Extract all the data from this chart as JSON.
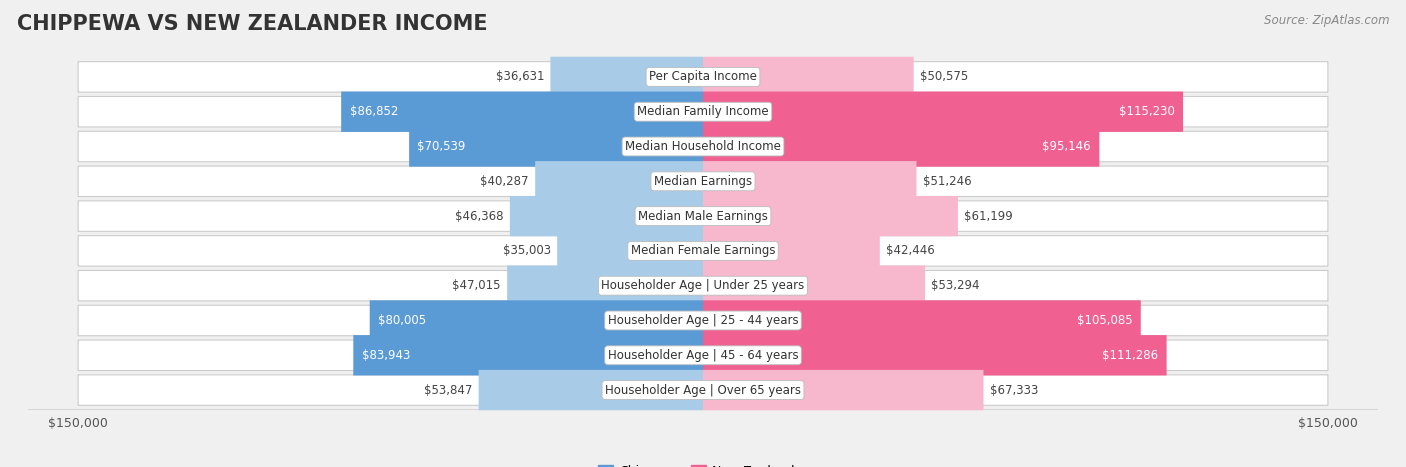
{
  "title": "CHIPPEWA VS NEW ZEALANDER INCOME",
  "source": "Source: ZipAtlas.com",
  "max_value": 150000,
  "categories": [
    "Per Capita Income",
    "Median Family Income",
    "Median Household Income",
    "Median Earnings",
    "Median Male Earnings",
    "Median Female Earnings",
    "Householder Age | Under 25 years",
    "Householder Age | 25 - 44 years",
    "Householder Age | 45 - 64 years",
    "Householder Age | Over 65 years"
  ],
  "chippewa_values": [
    36631,
    86852,
    70539,
    40287,
    46368,
    35003,
    47015,
    80005,
    83943,
    53847
  ],
  "newzealander_values": [
    50575,
    115230,
    95146,
    51246,
    61199,
    42446,
    53294,
    105085,
    111286,
    67333
  ],
  "chippewa_labels": [
    "$36,631",
    "$86,852",
    "$70,539",
    "$40,287",
    "$46,368",
    "$35,003",
    "$47,015",
    "$80,005",
    "$83,943",
    "$53,847"
  ],
  "newzealander_labels": [
    "$50,575",
    "$115,230",
    "$95,146",
    "$51,246",
    "$61,199",
    "$42,446",
    "$53,294",
    "$105,085",
    "$111,286",
    "$67,333"
  ],
  "chippewa_color_light": "#a8cce8",
  "chippewa_color_dark": "#5b9bd5",
  "newzealander_color_light": "#f7b8ce",
  "newzealander_color_dark": "#f06090",
  "background_color": "#f0f0f0",
  "row_bg_color": "#ffffff",
  "title_fontsize": 15,
  "label_fontsize": 8.5,
  "value_fontsize": 8.5,
  "legend_fontsize": 9,
  "chippewa_threshold": 65000,
  "newzealander_threshold": 85000
}
